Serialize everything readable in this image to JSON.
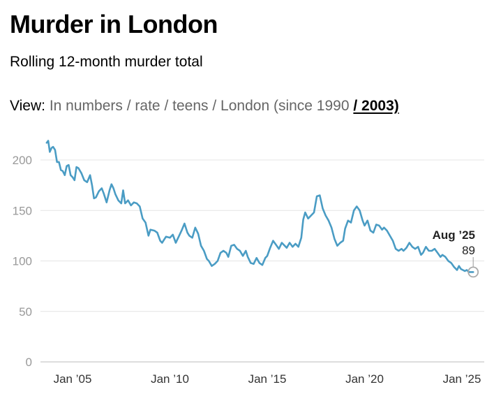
{
  "header": {
    "title": "Murder in London",
    "subtitle": "Rolling 12-month murder total"
  },
  "view_selector": {
    "label": "View:",
    "options": [
      "In numbers",
      "rate",
      "teens",
      "London (since 1990"
    ],
    "active": "/ 2003)"
  },
  "chart_data": {
    "type": "line",
    "title": "Murder in London",
    "subtitle": "Rolling 12-month murder total",
    "ylim": [
      0,
      220
    ],
    "yticks": [
      0,
      50,
      100,
      150,
      200
    ],
    "xtick_labels": [
      "Jan ’05",
      "Jan ’10",
      "Jan ’15",
      "Jan ’20",
      "Jan ’25"
    ],
    "xtick_years": [
      2005,
      2010,
      2015,
      2020,
      2025
    ],
    "xlim_years": [
      2003.6,
      2025.8
    ],
    "grid": true,
    "series": [
      {
        "color": "#4a9cc4",
        "points": [
          [
            2003.67,
            217
          ],
          [
            2003.75,
            219
          ],
          [
            2003.83,
            208
          ],
          [
            2003.92,
            212
          ],
          [
            2004.0,
            213
          ],
          [
            2004.1,
            210
          ],
          [
            2004.2,
            198
          ],
          [
            2004.3,
            198
          ],
          [
            2004.4,
            190
          ],
          [
            2004.5,
            189
          ],
          [
            2004.6,
            185
          ],
          [
            2004.7,
            194
          ],
          [
            2004.8,
            195
          ],
          [
            2004.9,
            185
          ],
          [
            2005.0,
            183
          ],
          [
            2005.1,
            180
          ],
          [
            2005.2,
            193
          ],
          [
            2005.3,
            192
          ],
          [
            2005.45,
            187
          ],
          [
            2005.6,
            180
          ],
          [
            2005.75,
            178
          ],
          [
            2005.9,
            185
          ],
          [
            2006.0,
            175
          ],
          [
            2006.1,
            162
          ],
          [
            2006.2,
            163
          ],
          [
            2006.35,
            169
          ],
          [
            2006.5,
            172
          ],
          [
            2006.6,
            167
          ],
          [
            2006.75,
            158
          ],
          [
            2006.9,
            170
          ],
          [
            2007.0,
            176
          ],
          [
            2007.1,
            172
          ],
          [
            2007.2,
            166
          ],
          [
            2007.35,
            160
          ],
          [
            2007.5,
            157
          ],
          [
            2007.6,
            170
          ],
          [
            2007.7,
            157
          ],
          [
            2007.85,
            160
          ],
          [
            2008.0,
            155
          ],
          [
            2008.15,
            158
          ],
          [
            2008.3,
            157
          ],
          [
            2008.45,
            154
          ],
          [
            2008.6,
            142
          ],
          [
            2008.75,
            138
          ],
          [
            2008.9,
            125
          ],
          [
            2009.0,
            131
          ],
          [
            2009.2,
            130
          ],
          [
            2009.35,
            128
          ],
          [
            2009.5,
            120
          ],
          [
            2009.6,
            118
          ],
          [
            2009.8,
            124
          ],
          [
            2010.0,
            123
          ],
          [
            2010.15,
            126
          ],
          [
            2010.3,
            118
          ],
          [
            2010.45,
            124
          ],
          [
            2010.6,
            130
          ],
          [
            2010.75,
            137
          ],
          [
            2010.9,
            128
          ],
          [
            2011.0,
            125
          ],
          [
            2011.15,
            123
          ],
          [
            2011.3,
            133
          ],
          [
            2011.45,
            127
          ],
          [
            2011.6,
            115
          ],
          [
            2011.75,
            110
          ],
          [
            2011.9,
            102
          ],
          [
            2012.0,
            100
          ],
          [
            2012.15,
            95
          ],
          [
            2012.3,
            97
          ],
          [
            2012.45,
            100
          ],
          [
            2012.6,
            108
          ],
          [
            2012.75,
            110
          ],
          [
            2012.9,
            108
          ],
          [
            2013.0,
            104
          ],
          [
            2013.15,
            115
          ],
          [
            2013.3,
            116
          ],
          [
            2013.45,
            112
          ],
          [
            2013.6,
            110
          ],
          [
            2013.75,
            105
          ],
          [
            2013.9,
            110
          ],
          [
            2014.0,
            104
          ],
          [
            2014.15,
            98
          ],
          [
            2014.3,
            97
          ],
          [
            2014.45,
            103
          ],
          [
            2014.6,
            98
          ],
          [
            2014.75,
            96
          ],
          [
            2014.9,
            103
          ],
          [
            2015.0,
            105
          ],
          [
            2015.15,
            113
          ],
          [
            2015.3,
            120
          ],
          [
            2015.45,
            116
          ],
          [
            2015.6,
            112
          ],
          [
            2015.75,
            118
          ],
          [
            2015.9,
            115
          ],
          [
            2016.0,
            113
          ],
          [
            2016.15,
            118
          ],
          [
            2016.3,
            114
          ],
          [
            2016.45,
            117
          ],
          [
            2016.6,
            114
          ],
          [
            2016.75,
            123
          ],
          [
            2016.85,
            141
          ],
          [
            2016.95,
            148
          ],
          [
            2017.1,
            142
          ],
          [
            2017.25,
            145
          ],
          [
            2017.4,
            148
          ],
          [
            2017.55,
            164
          ],
          [
            2017.7,
            165
          ],
          [
            2017.85,
            152
          ],
          [
            2018.0,
            145
          ],
          [
            2018.15,
            140
          ],
          [
            2018.3,
            133
          ],
          [
            2018.45,
            122
          ],
          [
            2018.6,
            115
          ],
          [
            2018.75,
            118
          ],
          [
            2018.9,
            120
          ],
          [
            2019.0,
            132
          ],
          [
            2019.15,
            140
          ],
          [
            2019.3,
            138
          ],
          [
            2019.45,
            150
          ],
          [
            2019.6,
            154
          ],
          [
            2019.75,
            150
          ],
          [
            2019.9,
            140
          ],
          [
            2020.0,
            135
          ],
          [
            2020.15,
            140
          ],
          [
            2020.3,
            130
          ],
          [
            2020.45,
            128
          ],
          [
            2020.6,
            136
          ],
          [
            2020.75,
            135
          ],
          [
            2020.9,
            131
          ],
          [
            2021.0,
            133
          ],
          [
            2021.15,
            130
          ],
          [
            2021.3,
            125
          ],
          [
            2021.45,
            120
          ],
          [
            2021.6,
            112
          ],
          [
            2021.75,
            110
          ],
          [
            2021.9,
            112
          ],
          [
            2022.0,
            110
          ],
          [
            2022.15,
            113
          ],
          [
            2022.3,
            118
          ],
          [
            2022.45,
            114
          ],
          [
            2022.6,
            112
          ],
          [
            2022.75,
            114
          ],
          [
            2022.9,
            106
          ],
          [
            2023.0,
            108
          ],
          [
            2023.15,
            114
          ],
          [
            2023.3,
            110
          ],
          [
            2023.45,
            110
          ],
          [
            2023.6,
            112
          ],
          [
            2023.75,
            108
          ],
          [
            2023.9,
            104
          ],
          [
            2024.0,
            106
          ],
          [
            2024.15,
            104
          ],
          [
            2024.3,
            100
          ],
          [
            2024.45,
            98
          ],
          [
            2024.6,
            94
          ],
          [
            2024.75,
            91
          ],
          [
            2024.85,
            95
          ],
          [
            2024.95,
            92
          ],
          [
            2025.05,
            91
          ],
          [
            2025.15,
            90
          ],
          [
            2025.25,
            91
          ],
          [
            2025.35,
            89
          ],
          [
            2025.45,
            89
          ],
          [
            2025.58,
            89
          ]
        ]
      }
    ],
    "annotation": {
      "label": "Aug ’25",
      "value": "89",
      "x_year": 2025.58,
      "y": 89
    }
  }
}
